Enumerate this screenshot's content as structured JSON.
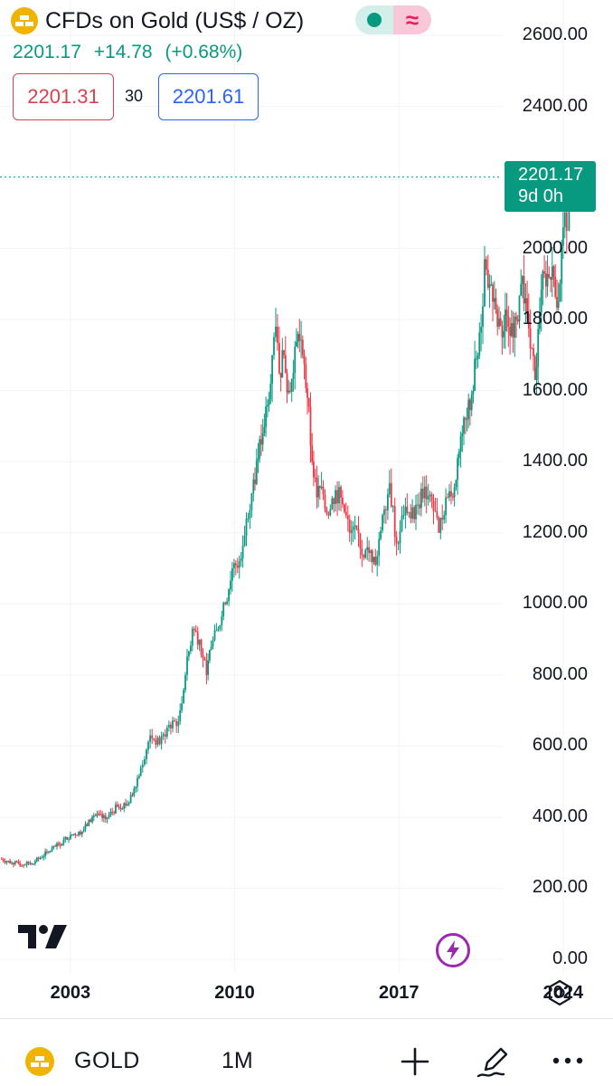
{
  "header": {
    "title": "CFDs on Gold (US$ / OZ)",
    "last_price": "2201.17",
    "change": "+14.78",
    "change_pct": "(+0.68%)",
    "bid": "2201.31",
    "spread": "30",
    "ask": "2201.61",
    "market_status_icon": "market-open-dot-icon",
    "data_icon": "approx-icon"
  },
  "last_price_tag": {
    "price": "2201.17",
    "countdown": "9d 0h"
  },
  "bottom_bar": {
    "symbol": "GOLD",
    "interval": "1M"
  },
  "colors": {
    "up": "#089981",
    "down": "#f23645",
    "grid": "#f0f3fa",
    "accent_purple": "#9c27b0",
    "logo_gold": "#f0b400"
  },
  "chart_data": {
    "type": "candlestick",
    "interval": "1M",
    "y_ticks": [
      "2600.00",
      "2400.00",
      "2000.00",
      "1800.00",
      "1600.00",
      "1400.00",
      "1200.00",
      "1000.00",
      "800.00",
      "600.00",
      "400.00",
      "200.00",
      "0.00"
    ],
    "x_ticks": [
      "2003",
      "2010",
      "2017",
      "2024"
    ],
    "x_range": [
      2000.0,
      2026.2
    ],
    "ylim": [
      0,
      2600
    ],
    "last_value": 2201.17,
    "grid": true,
    "series": [
      {
        "x": [
          2000.0,
          2000.5,
          2001.0,
          2001.5,
          2002.0,
          2002.5,
          2003.0,
          2003.5,
          2004.0,
          2004.5,
          2005.0,
          2005.5,
          2006.0,
          2006.4,
          2006.8,
          2007.2,
          2007.6,
          2007.9,
          2008.2,
          2008.5,
          2008.8,
          2009.0,
          2009.3,
          2009.6,
          2009.9,
          2010.2,
          2010.5,
          2010.8,
          2011.0,
          2011.2,
          2011.4,
          2011.6,
          2011.75,
          2011.9,
          2012.1,
          2012.3,
          2012.5,
          2012.7,
          2012.9,
          2013.1,
          2013.3,
          2013.5,
          2013.7,
          2014.0,
          2014.3,
          2014.6,
          2014.9,
          2015.2,
          2015.5,
          2015.8,
          2016.0,
          2016.3,
          2016.6,
          2016.9,
          2017.2,
          2017.5,
          2017.8,
          2018.1,
          2018.4,
          2018.7,
          2019.0,
          2019.3,
          2019.5,
          2019.7,
          2019.9,
          2020.1,
          2020.3,
          2020.5,
          2020.65,
          2020.8,
          2021.0,
          2021.2,
          2021.4,
          2021.6,
          2021.8,
          2022.0,
          2022.2,
          2022.4,
          2022.6,
          2022.8,
          2023.0,
          2023.2,
          2023.4,
          2023.6,
          2023.8,
          2024.0,
          2024.15,
          2024.25
        ],
        "close": [
          283,
          272,
          266,
          276,
          300,
          322,
          350,
          360,
          405,
          395,
          430,
          440,
          540,
          630,
          605,
          660,
          670,
          800,
          930,
          900,
          800,
          880,
          930,
          1000,
          1100,
          1120,
          1240,
          1350,
          1410,
          1480,
          1560,
          1700,
          1780,
          1650,
          1700,
          1600,
          1650,
          1760,
          1700,
          1580,
          1400,
          1300,
          1330,
          1250,
          1320,
          1280,
          1200,
          1210,
          1130,
          1150,
          1110,
          1250,
          1340,
          1170,
          1250,
          1240,
          1280,
          1330,
          1290,
          1200,
          1300,
          1300,
          1410,
          1480,
          1520,
          1590,
          1690,
          1780,
          1970,
          1890,
          1850,
          1780,
          1750,
          1810,
          1790,
          1800,
          1900,
          1860,
          1720,
          1630,
          1820,
          1930,
          1920,
          1920,
          1850,
          2060,
          2050,
          2201
        ]
      }
    ]
  }
}
